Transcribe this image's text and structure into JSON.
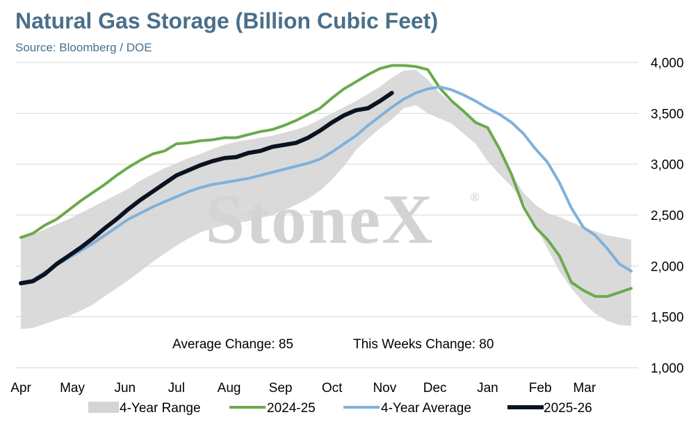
{
  "header": {
    "title": "Natural Gas Storage (Billion Cubic Feet)",
    "subtitle": "Source: Bloomberg / DOE"
  },
  "watermark": {
    "text": "StoneX",
    "mark": "®"
  },
  "annotations": {
    "avg_change": "Average Change: 85",
    "week_change": "This Weeks Change: 80"
  },
  "colors": {
    "range": "#d3d4d4",
    "prior_year": "#6aaa4b",
    "average": "#7fb1db",
    "current": "#0b1220",
    "grid": "#d6d6d6",
    "title": "#4a6f8a"
  },
  "chart_data": {
    "type": "line",
    "title": "Natural Gas Storage (Billion Cubic Feet)",
    "ylim": [
      1000,
      4000
    ],
    "yticks": [
      1000,
      1500,
      2000,
      2500,
      3000,
      3500,
      4000
    ],
    "ytick_labels": [
      "1,000",
      "1,500",
      "2,000",
      "2,500",
      "3,000",
      "3,500",
      "4,000"
    ],
    "grid": true,
    "y_axis_side": "right",
    "legend_position": "bottom",
    "x_domain": [
      0,
      51
    ],
    "x_ticks": [
      {
        "label": "Apr",
        "x": 0
      },
      {
        "label": "May",
        "x": 4.3
      },
      {
        "label": "Jun",
        "x": 8.7
      },
      {
        "label": "Jul",
        "x": 13
      },
      {
        "label": "Aug",
        "x": 17.4
      },
      {
        "label": "Sep",
        "x": 21.7
      },
      {
        "label": "Oct",
        "x": 26
      },
      {
        "label": "Nov",
        "x": 30.4
      },
      {
        "label": "Dec",
        "x": 34.6
      },
      {
        "label": "Jan",
        "x": 39
      },
      {
        "label": "Feb",
        "x": 43.4
      },
      {
        "label": "Mar",
        "x": 47.1
      }
    ],
    "range": {
      "name": "4-Year Range",
      "upper": [
        2280,
        2310,
        2360,
        2410,
        2460,
        2520,
        2580,
        2640,
        2700,
        2760,
        2840,
        2900,
        2960,
        3010,
        3060,
        3100,
        3150,
        3190,
        3220,
        3240,
        3260,
        3280,
        3310,
        3340,
        3380,
        3440,
        3500,
        3560,
        3620,
        3690,
        3760,
        3850,
        3920,
        3930,
        3830,
        3700,
        3600,
        3500,
        3420,
        3350,
        3150,
        2900,
        2720,
        2600,
        2520,
        2480,
        2430,
        2380,
        2340,
        2300,
        2280,
        2260
      ],
      "lower": [
        1380,
        1390,
        1430,
        1470,
        1510,
        1560,
        1620,
        1700,
        1780,
        1860,
        1950,
        2040,
        2120,
        2200,
        2270,
        2330,
        2370,
        2400,
        2420,
        2440,
        2470,
        2500,
        2550,
        2600,
        2660,
        2740,
        2850,
        2980,
        3140,
        3250,
        3350,
        3440,
        3550,
        3580,
        3500,
        3450,
        3400,
        3300,
        3200,
        3030,
        2900,
        2780,
        2620,
        2400,
        2170,
        1950,
        1780,
        1640,
        1530,
        1460,
        1420,
        1410
      ]
    },
    "series": [
      {
        "name": "2024-25",
        "x_start": 0,
        "values": [
          2280,
          2320,
          2400,
          2460,
          2550,
          2640,
          2720,
          2800,
          2890,
          2970,
          3040,
          3100,
          3130,
          3200,
          3210,
          3230,
          3240,
          3260,
          3260,
          3290,
          3320,
          3340,
          3380,
          3430,
          3490,
          3550,
          3650,
          3740,
          3810,
          3880,
          3940,
          3970,
          3970,
          3960,
          3930,
          3750,
          3620,
          3520,
          3410,
          3360,
          3150,
          2900,
          2580,
          2380,
          2260,
          2100,
          1840,
          1760,
          1700,
          1700,
          1740,
          1780
        ]
      },
      {
        "name": "4-Year Average",
        "x_start": 0,
        "values": [
          1840,
          1860,
          1940,
          2010,
          2080,
          2150,
          2220,
          2300,
          2380,
          2460,
          2520,
          2580,
          2630,
          2680,
          2730,
          2770,
          2800,
          2820,
          2840,
          2860,
          2890,
          2920,
          2950,
          2980,
          3010,
          3050,
          3120,
          3200,
          3280,
          3380,
          3470,
          3560,
          3640,
          3700,
          3740,
          3760,
          3730,
          3680,
          3620,
          3550,
          3490,
          3410,
          3300,
          3150,
          3020,
          2820,
          2570,
          2380,
          2300,
          2170,
          2020,
          1950
        ]
      },
      {
        "name": "2025-26",
        "x_start": 0,
        "values": [
          1830,
          1850,
          1920,
          2020,
          2100,
          2180,
          2270,
          2370,
          2460,
          2560,
          2650,
          2730,
          2810,
          2890,
          2940,
          2990,
          3030,
          3060,
          3070,
          3110,
          3130,
          3170,
          3190,
          3210,
          3260,
          3330,
          3410,
          3480,
          3530,
          3550,
          3620,
          3700
        ]
      }
    ],
    "legend": [
      "4-Year Range",
      "2024-25",
      "4-Year Average",
      "2025-26"
    ]
  }
}
